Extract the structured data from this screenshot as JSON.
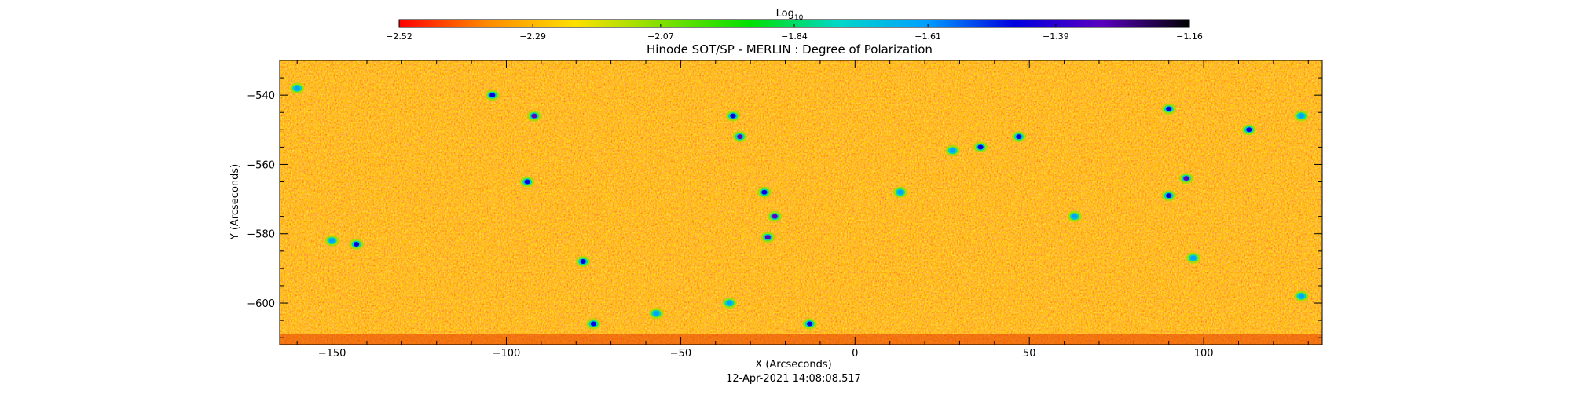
{
  "chart_data": {
    "type": "heatmap",
    "title": "Hinode SOT/SP - MERLIN : Degree of Polarization",
    "xlabel": "X (Arcseconds)",
    "ylabel": "Y (Arcseconds)",
    "timestamp": "12-Apr-2021 14:08:08.517",
    "xlim": [
      -165,
      134
    ],
    "ylim": [
      -612,
      -530
    ],
    "x_ticks": [
      -150,
      -100,
      -50,
      0,
      50,
      100
    ],
    "x_tick_labels": [
      "−150",
      "−100",
      "−50",
      "0",
      "50",
      "100"
    ],
    "y_ticks": [
      -540,
      -560,
      -580,
      -600
    ],
    "y_tick_labels": [
      "−540",
      "−560",
      "−580",
      "−600"
    ],
    "colorbar": {
      "label": "Log",
      "label_subscript": "10",
      "range": [
        -2.52,
        -1.16
      ],
      "ticks": [
        -2.52,
        -2.29,
        -2.07,
        -1.84,
        -1.61,
        -1.39,
        -1.16
      ],
      "tick_labels": [
        "−2.52",
        "−2.29",
        "−2.07",
        "−1.84",
        "−1.61",
        "−1.39",
        "−1.16"
      ],
      "stops": [
        "#ff0000",
        "#ff8a00",
        "#ffe000",
        "#7fe000",
        "#00e000",
        "#00d8c8",
        "#00a0ff",
        "#0000e0",
        "#5a00c0",
        "#000000"
      ]
    },
    "background_level": -2.33,
    "features": [
      {
        "x": -160,
        "y": -538,
        "v": -1.55
      },
      {
        "x": -104,
        "y": -540,
        "v": -1.4
      },
      {
        "x": -92,
        "y": -546,
        "v": -1.32
      },
      {
        "x": -94,
        "y": -565,
        "v": -1.45
      },
      {
        "x": -150,
        "y": -582,
        "v": -1.55
      },
      {
        "x": -143,
        "y": -583,
        "v": -1.45
      },
      {
        "x": -78,
        "y": -588,
        "v": -1.5
      },
      {
        "x": -75,
        "y": -606,
        "v": -1.5
      },
      {
        "x": -57,
        "y": -603,
        "v": -1.55
      },
      {
        "x": -35,
        "y": -546,
        "v": -1.4
      },
      {
        "x": -33,
        "y": -552,
        "v": -1.3
      },
      {
        "x": -26,
        "y": -568,
        "v": -1.5
      },
      {
        "x": -23,
        "y": -575,
        "v": -1.25
      },
      {
        "x": -25,
        "y": -581,
        "v": -1.3
      },
      {
        "x": -36,
        "y": -600,
        "v": -1.6
      },
      {
        "x": -13,
        "y": -606,
        "v": -1.4
      },
      {
        "x": 13,
        "y": -568,
        "v": -1.6
      },
      {
        "x": 28,
        "y": -556,
        "v": -1.6
      },
      {
        "x": 36,
        "y": -555,
        "v": -1.5
      },
      {
        "x": 47,
        "y": -552,
        "v": -1.4
      },
      {
        "x": 63,
        "y": -575,
        "v": -1.6
      },
      {
        "x": 95,
        "y": -564,
        "v": -1.35
      },
      {
        "x": 90,
        "y": -569,
        "v": -1.45
      },
      {
        "x": 113,
        "y": -550,
        "v": -1.45
      },
      {
        "x": 97,
        "y": -587,
        "v": -1.6
      },
      {
        "x": 128,
        "y": -598,
        "v": -1.55
      },
      {
        "x": 128,
        "y": -546,
        "v": -1.6
      },
      {
        "x": 90,
        "y": -544,
        "v": -1.5
      }
    ]
  }
}
